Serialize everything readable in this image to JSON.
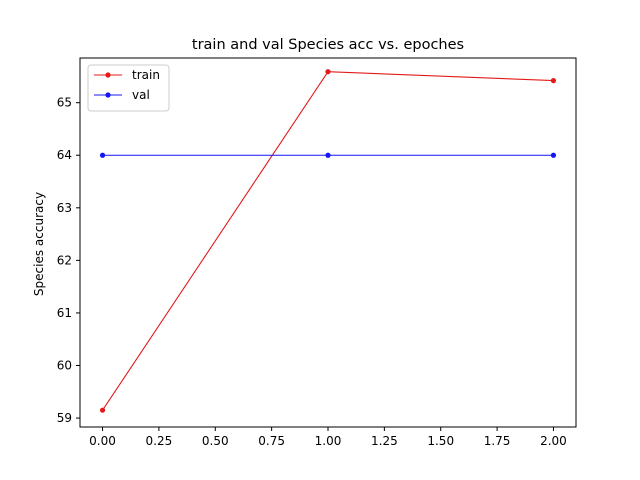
{
  "chart_data": {
    "type": "line",
    "title": "train and val Species acc vs. epoches",
    "xlabel": "",
    "ylabel": "Species accuracy",
    "xlim": [
      -0.1,
      2.1
    ],
    "ylim": [
      58.83,
      65.85
    ],
    "x_ticks": [
      "0.00",
      "0.25",
      "0.50",
      "0.75",
      "1.00",
      "1.25",
      "1.50",
      "1.75",
      "2.00"
    ],
    "y_ticks": [
      "59",
      "60",
      "61",
      "62",
      "63",
      "64",
      "65"
    ],
    "grid": false,
    "legend_position": "top-left",
    "series": [
      {
        "name": "train",
        "color": "#e41a1a",
        "marker": "circle",
        "x": [
          0,
          1,
          2
        ],
        "y": [
          59.15,
          65.59,
          65.42
        ]
      },
      {
        "name": "val",
        "color": "#1515f5",
        "marker": "circle",
        "x": [
          0,
          1,
          2
        ],
        "y": [
          64.0,
          64.0,
          64.0
        ]
      }
    ]
  }
}
